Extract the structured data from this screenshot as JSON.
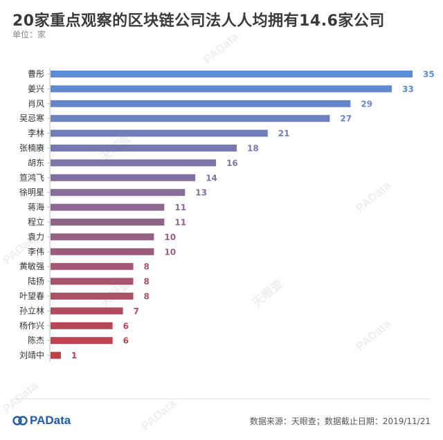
{
  "header": {
    "title": "20家重点观察的区块链公司法人人均拥有14.6家公司",
    "unit": "单位：家"
  },
  "footer": {
    "logo_text": "PAData",
    "source": "数据来源：天眼查；数据截止日期：2019/11/21"
  },
  "watermarks": [
    "PAData",
    "天眼查"
  ],
  "colors": {
    "top": "#5b8ed6",
    "bottom": "#c13f47",
    "title": "#3a3a3a"
  },
  "chart_data": {
    "type": "bar",
    "orientation": "horizontal",
    "categories": [
      "曹彤",
      "姜兴",
      "肖风",
      "吴忌寒",
      "李林",
      "张楠赓",
      "胡东",
      "笪鸿飞",
      "徐明星",
      "蒋海",
      "程立",
      "袁力",
      "李伟",
      "黄敏强",
      "陆扬",
      "叶望春",
      "孙立林",
      "杨作兴",
      "陈杰",
      "刘靖中"
    ],
    "values": [
      35,
      33,
      29,
      27,
      21,
      18,
      16,
      14,
      13,
      11,
      11,
      10,
      10,
      8,
      8,
      8,
      7,
      6,
      6,
      1
    ],
    "xlim": [
      0,
      35
    ],
    "grid": false,
    "legend": "none",
    "data_labels": true
  }
}
